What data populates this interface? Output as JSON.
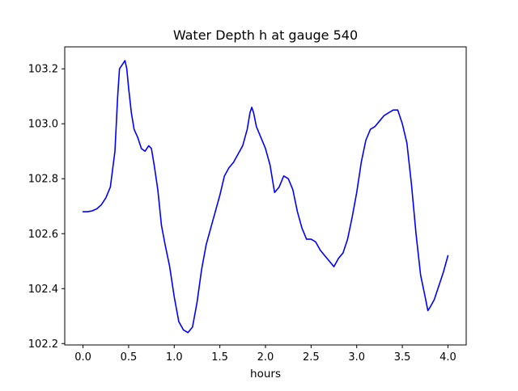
{
  "chart_data": {
    "type": "line",
    "title": "Water Depth h at gauge 540",
    "xlabel": "hours",
    "ylabel": "",
    "xlim": [
      -0.2,
      4.2
    ],
    "ylim": [
      102.195,
      103.28
    ],
    "x_ticks": [
      0.0,
      0.5,
      1.0,
      1.5,
      2.0,
      2.5,
      3.0,
      3.5,
      4.0
    ],
    "x_tick_labels": [
      "0.0",
      "0.5",
      "1.0",
      "1.5",
      "2.0",
      "2.5",
      "3.0",
      "3.5",
      "4.0"
    ],
    "y_ticks": [
      102.2,
      102.4,
      102.6,
      102.8,
      103.0,
      103.2
    ],
    "y_tick_labels": [
      "102.2",
      "102.4",
      "102.6",
      "102.8",
      "103.0",
      "103.2"
    ],
    "grid": false,
    "legend": "none",
    "series": [
      {
        "color": "#0000ff",
        "x": [
          0.0,
          0.05,
          0.1,
          0.15,
          0.2,
          0.25,
          0.3,
          0.35,
          0.38,
          0.4,
          0.42,
          0.44,
          0.46,
          0.48,
          0.5,
          0.53,
          0.56,
          0.6,
          0.64,
          0.68,
          0.72,
          0.75,
          0.78,
          0.82,
          0.86,
          0.9,
          0.95,
          1.0,
          1.05,
          1.1,
          1.15,
          1.2,
          1.25,
          1.3,
          1.35,
          1.4,
          1.45,
          1.5,
          1.55,
          1.6,
          1.65,
          1.7,
          1.75,
          1.8,
          1.83,
          1.85,
          1.87,
          1.9,
          1.95,
          2.0,
          2.05,
          2.1,
          2.15,
          2.2,
          2.25,
          2.3,
          2.35,
          2.4,
          2.45,
          2.5,
          2.55,
          2.6,
          2.65,
          2.7,
          2.75,
          2.8,
          2.85,
          2.9,
          2.95,
          3.0,
          3.05,
          3.1,
          3.15,
          3.2,
          3.25,
          3.3,
          3.35,
          3.4,
          3.45,
          3.5,
          3.55,
          3.6,
          3.65,
          3.7,
          3.75,
          3.78,
          3.8,
          3.85,
          3.9,
          3.95,
          4.0
        ],
        "y": [
          102.68,
          102.68,
          102.683,
          102.69,
          102.705,
          102.73,
          102.77,
          102.9,
          103.1,
          103.2,
          103.21,
          103.22,
          103.23,
          103.2,
          103.13,
          103.04,
          102.98,
          102.95,
          102.91,
          102.9,
          102.92,
          102.91,
          102.85,
          102.76,
          102.63,
          102.56,
          102.48,
          102.37,
          102.28,
          102.25,
          102.24,
          102.26,
          102.35,
          102.47,
          102.56,
          102.62,
          102.68,
          102.74,
          102.81,
          102.84,
          102.86,
          102.89,
          102.92,
          102.98,
          103.04,
          103.06,
          103.04,
          102.99,
          102.95,
          102.91,
          102.85,
          102.75,
          102.77,
          102.81,
          102.8,
          102.76,
          102.68,
          102.62,
          102.58,
          102.58,
          102.57,
          102.54,
          102.52,
          102.5,
          102.48,
          102.51,
          102.53,
          102.58,
          102.66,
          102.75,
          102.86,
          102.94,
          102.98,
          102.99,
          103.01,
          103.03,
          103.04,
          103.05,
          103.05,
          103.0,
          102.93,
          102.78,
          102.6,
          102.45,
          102.37,
          102.32,
          102.33,
          102.36,
          102.41,
          102.46,
          102.52
        ]
      }
    ]
  }
}
